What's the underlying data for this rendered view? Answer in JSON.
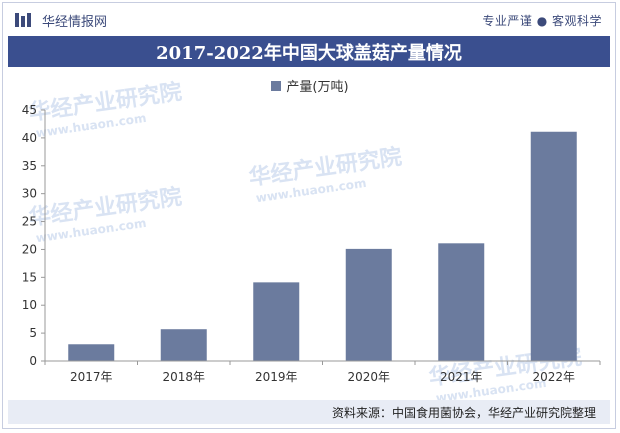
{
  "header": {
    "brand": "华经情报网",
    "tagline": "专业严谨 ● 客观科学",
    "title": "2017-2022年中国大球盖菇产量情况"
  },
  "watermark": {
    "text": "华经产业研究院",
    "url": "www.huaon.com"
  },
  "footer": {
    "source": "资料来源：中国食用菌协会，华经产业研究院整理"
  },
  "colors": {
    "bar": "#6b7b9e",
    "title_bg": "#3a4f8f",
    "axis": "#999999",
    "text": "#333333"
  },
  "chart_data": {
    "type": "bar",
    "categories": [
      "2017年",
      "2018年",
      "2019年",
      "2020年",
      "2021年",
      "2022年"
    ],
    "series": [
      {
        "name": "产量(万吨)",
        "values": [
          3,
          5.7,
          14.1,
          20.1,
          21.1,
          41.1
        ]
      }
    ],
    "ylim": [
      0,
      45
    ],
    "yticks": [
      0,
      5,
      10,
      15,
      20,
      25,
      30,
      35,
      40,
      45
    ],
    "grid": false,
    "legend": "top-center"
  }
}
